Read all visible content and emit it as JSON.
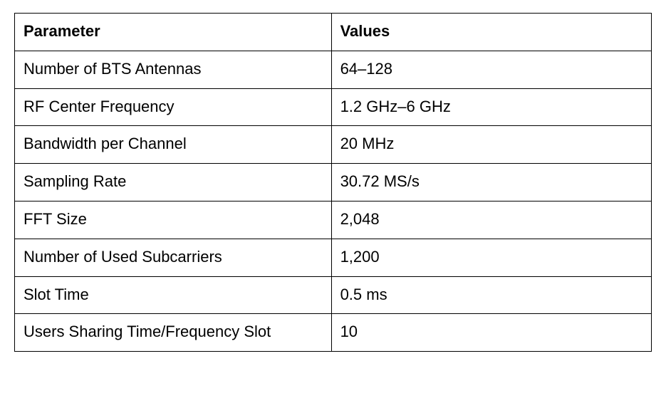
{
  "table": {
    "background_color": "#ffffff",
    "border_color": "#000000",
    "text_color": "#000000",
    "header_font_weight": 700,
    "body_font_weight": 400,
    "font_size": 22,
    "column_widths": {
      "param": 445,
      "values": 450
    },
    "columns": [
      "Parameter",
      "Values"
    ],
    "rows": [
      {
        "param": "Number of BTS Antennas",
        "value": "64–128"
      },
      {
        "param": "RF Center Frequency",
        "value": "1.2 GHz–6 GHz"
      },
      {
        "param": "Bandwidth per Channel",
        "value": "20 MHz"
      },
      {
        "param": "Sampling Rate",
        "value": "30.72 MS/s"
      },
      {
        "param": "FFT Size",
        "value": "2,048"
      },
      {
        "param": "Number of Used Subcarriers",
        "value": "1,200"
      },
      {
        "param": "Slot Time",
        "value": "0.5 ms"
      },
      {
        "param": "Users Sharing Time/Frequency Slot",
        "value": "10"
      }
    ]
  }
}
